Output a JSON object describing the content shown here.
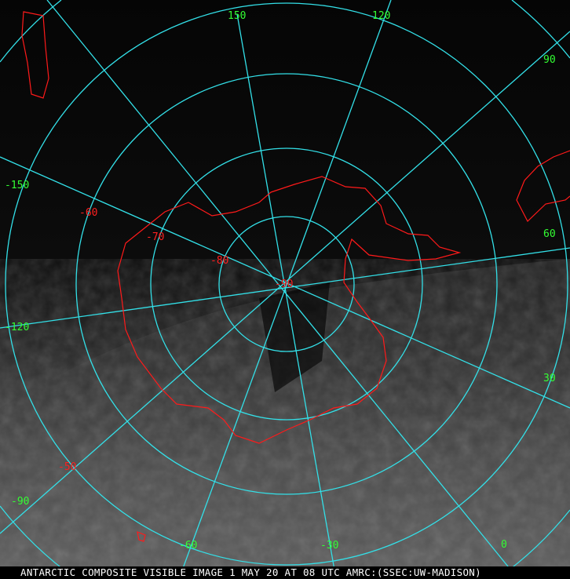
{
  "map": {
    "projection": "south polar stereographic",
    "colors": {
      "grid": "#33e0e8",
      "coastline": "#ff1a1a",
      "longitude_labels": "#33ff33",
      "latitude_labels": "#ff2020",
      "caption_text": "#ffffff"
    },
    "longitude_labels": [
      "150",
      "120",
      "90",
      "60",
      "30",
      "0",
      "-30",
      "-60",
      "-90",
      "-120",
      "-150"
    ],
    "latitude_labels": [
      "-50",
      "-60",
      "-70",
      "-80",
      "-90"
    ]
  },
  "caption": "ANTARCTIC COMPOSITE VISIBLE IMAGE 1 MAY 20 AT 08 UTC AMRC:(SSEC:UW-MADISON)"
}
